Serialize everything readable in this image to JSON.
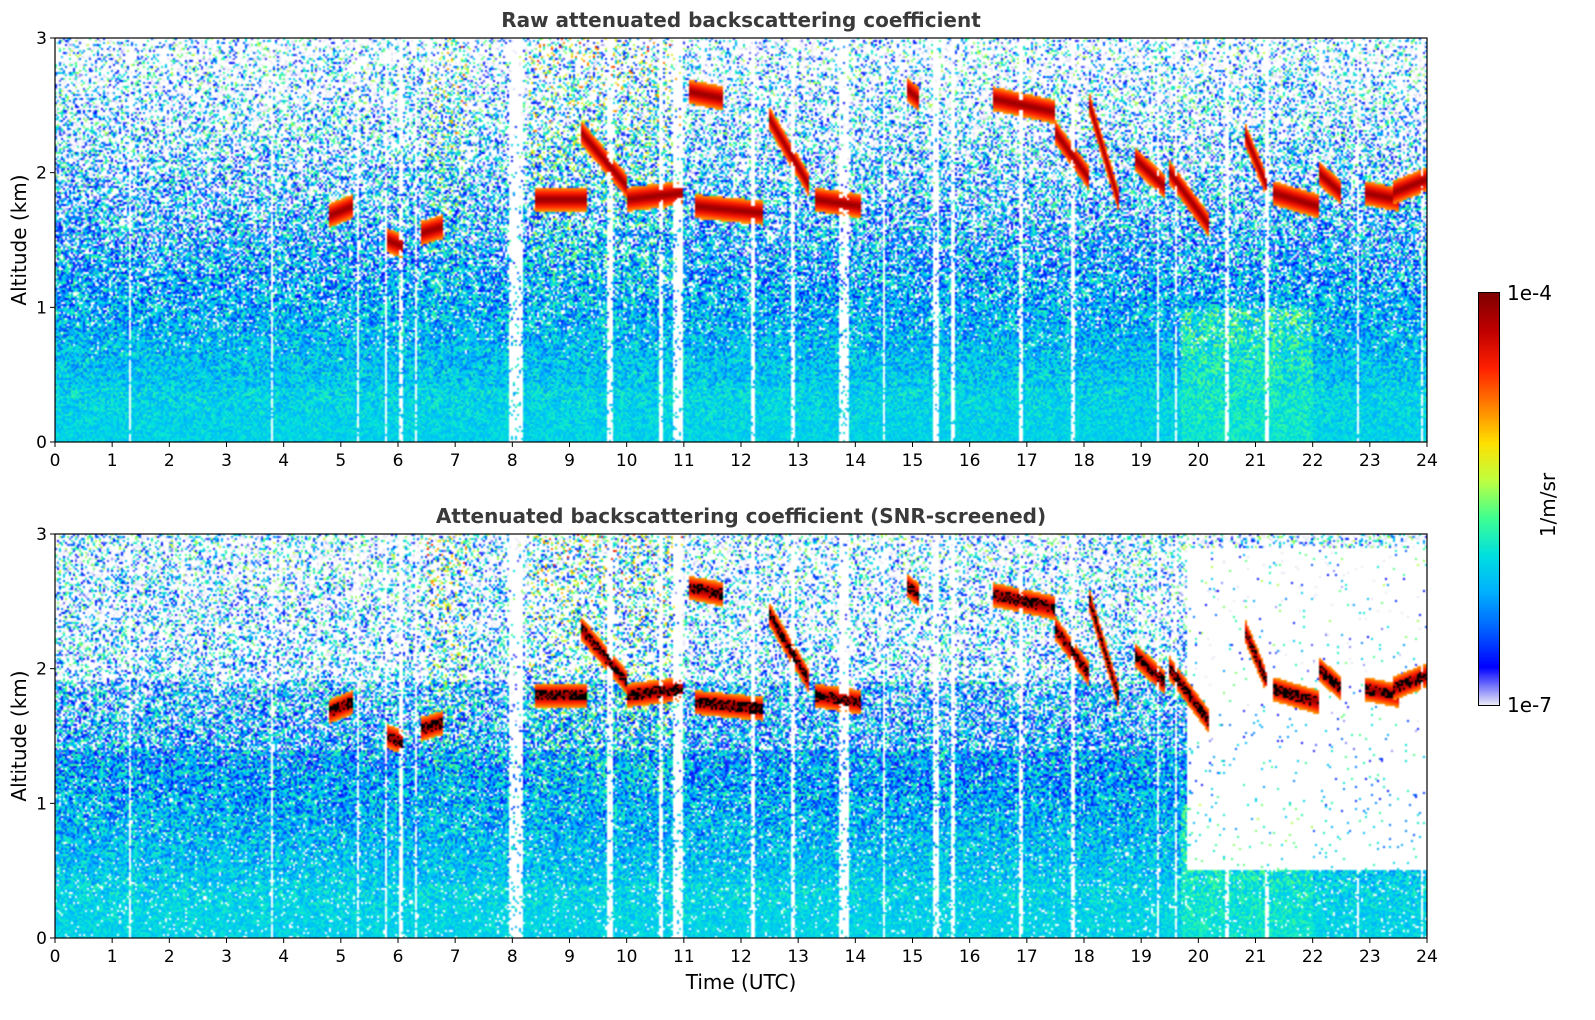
{
  "chart_data": [
    {
      "type": "heatmap",
      "title": "Raw attenuated backscattering coefficient",
      "xlabel": "",
      "ylabel": "Altitude (km)",
      "xlim": [
        0,
        24
      ],
      "ylim": [
        0,
        3
      ],
      "xticks": [
        "0",
        "1",
        "2",
        "3",
        "4",
        "5",
        "6",
        "7",
        "8",
        "9",
        "10",
        "11",
        "12",
        "13",
        "14",
        "15",
        "16",
        "17",
        "18",
        "19",
        "20",
        "21",
        "22",
        "23",
        "24"
      ],
      "yticks": [
        "0",
        "1",
        "2",
        "3"
      ],
      "screened": false,
      "cloud_segments_time_alt_km": [
        [
          4.8,
          1.68,
          5.2,
          1.75
        ],
        [
          5.8,
          1.5,
          6.1,
          1.45
        ],
        [
          6.4,
          1.55,
          6.8,
          1.6
        ],
        [
          8.4,
          1.8,
          9.3,
          1.8
        ],
        [
          9.2,
          2.3,
          10.0,
          1.9
        ],
        [
          10.0,
          1.8,
          11.0,
          1.85
        ],
        [
          11.1,
          2.6,
          11.7,
          2.55
        ],
        [
          11.2,
          1.75,
          12.4,
          1.7
        ],
        [
          12.5,
          2.4,
          13.2,
          1.9
        ],
        [
          13.3,
          1.8,
          14.1,
          1.75
        ],
        [
          14.9,
          2.62,
          15.1,
          2.55
        ],
        [
          16.4,
          2.55,
          17.5,
          2.45
        ],
        [
          17.5,
          2.3,
          18.1,
          1.95
        ],
        [
          18.1,
          2.5,
          18.6,
          1.8
        ],
        [
          18.9,
          2.1,
          19.4,
          1.9
        ],
        [
          19.5,
          2.0,
          20.2,
          1.6
        ],
        [
          20.8,
          2.3,
          21.2,
          1.9
        ],
        [
          21.3,
          1.85,
          22.1,
          1.75
        ],
        [
          22.1,
          2.0,
          22.5,
          1.85
        ],
        [
          22.9,
          1.85,
          23.5,
          1.8
        ],
        [
          23.4,
          1.85,
          24.0,
          1.95
        ]
      ]
    },
    {
      "type": "heatmap",
      "title": "Attenuated backscattering coefficient (SNR-screened)",
      "xlabel": "Time (UTC)",
      "ylabel": "Altitude (km)",
      "xlim": [
        0,
        24
      ],
      "ylim": [
        0,
        3
      ],
      "xticks": [
        "0",
        "1",
        "2",
        "3",
        "4",
        "5",
        "6",
        "7",
        "8",
        "9",
        "10",
        "11",
        "12",
        "13",
        "14",
        "15",
        "16",
        "17",
        "18",
        "19",
        "20",
        "21",
        "22",
        "23",
        "24"
      ],
      "yticks": [
        "0",
        "1",
        "2",
        "3"
      ],
      "screened": true,
      "cloud_segments_time_alt_km": [
        [
          4.8,
          1.68,
          5.2,
          1.75
        ],
        [
          5.8,
          1.5,
          6.1,
          1.45
        ],
        [
          6.4,
          1.55,
          6.8,
          1.6
        ],
        [
          8.4,
          1.8,
          9.3,
          1.8
        ],
        [
          9.2,
          2.3,
          10.0,
          1.9
        ],
        [
          10.0,
          1.8,
          11.0,
          1.85
        ],
        [
          11.1,
          2.6,
          11.7,
          2.55
        ],
        [
          11.2,
          1.75,
          12.4,
          1.7
        ],
        [
          12.5,
          2.4,
          13.2,
          1.9
        ],
        [
          13.3,
          1.8,
          14.1,
          1.75
        ],
        [
          14.9,
          2.62,
          15.1,
          2.55
        ],
        [
          16.4,
          2.55,
          17.5,
          2.45
        ],
        [
          17.5,
          2.3,
          18.1,
          1.95
        ],
        [
          18.1,
          2.5,
          18.6,
          1.8
        ],
        [
          18.9,
          2.1,
          19.4,
          1.9
        ],
        [
          19.5,
          2.0,
          20.2,
          1.6
        ],
        [
          20.8,
          2.3,
          21.2,
          1.9
        ],
        [
          21.3,
          1.85,
          22.1,
          1.75
        ],
        [
          22.1,
          2.0,
          22.5,
          1.85
        ],
        [
          22.9,
          1.85,
          23.5,
          1.8
        ],
        [
          23.4,
          1.85,
          24.0,
          1.95
        ]
      ]
    }
  ],
  "colorbar": {
    "label": "1/m/sr",
    "max_label": "1e-4",
    "min_label": "1e-7",
    "scale": "log",
    "colormap": [
      "#e8e8f8",
      "#0000ff",
      "#0060ff",
      "#00b0ff",
      "#00e0e0",
      "#40ff90",
      "#c0ff40",
      "#ffe000",
      "#ff8000",
      "#ff2000",
      "#c00000",
      "#800000"
    ]
  }
}
